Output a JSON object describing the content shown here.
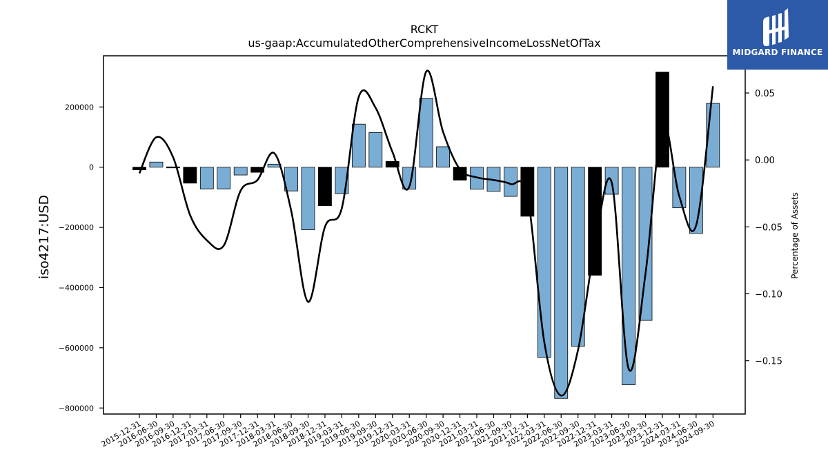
{
  "brand": {
    "name": "MIDGARD FINANCE",
    "color": "#2d5aa8"
  },
  "chart_data": {
    "type": "bar",
    "title": "RCKT",
    "subtitle": "us-gaap:AccumulatedOtherComprehensiveIncomeLossNetOfTax",
    "ylabel": "iso4217:USD",
    "ylabel_right": "Percentage of Assets",
    "ylim": [
      -820000,
      370000
    ],
    "ylim_right": [
      -0.1898,
      0.0778
    ],
    "yticks": [
      -800000,
      -600000,
      -400000,
      -200000,
      0,
      200000
    ],
    "yticks_right": [
      -0.15,
      -0.1,
      -0.05,
      0.0,
      0.05
    ],
    "yticks_right_labels": [
      "−0.15",
      "−0.10",
      "−0.05",
      "0.00",
      "0.05"
    ],
    "grid": false,
    "colors": {
      "increase": "#7aadd4",
      "decrease": "#000000",
      "line": "#000000"
    },
    "categories": [
      "2015-12-31",
      "2016-06-30",
      "2016-09-30",
      "2016-12-31",
      "2017-03-31",
      "2017-06-30",
      "2017-09-30",
      "2017-12-31",
      "2018-03-31",
      "2018-06-30",
      "2018-09-30",
      "2018-12-31",
      "2019-03-31",
      "2019-06-30",
      "2019-09-30",
      "2019-12-31",
      "2020-03-31",
      "2020-06-30",
      "2020-09-30",
      "2020-12-31",
      "2021-03-31",
      "2021-06-30",
      "2021-09-30",
      "2021-12-31",
      "2022-03-31",
      "2022-06-30",
      "2022-09-30",
      "2022-12-31",
      "2023-03-31",
      "2023-06-30",
      "2023-09-30",
      "2023-12-31",
      "2024-03-31",
      "2024-06-30",
      "2024-09-30"
    ],
    "series": [
      {
        "kind": "bar",
        "values": [
          -9000,
          17000,
          1000,
          -53000,
          -72000,
          -72000,
          -26000,
          -17000,
          10000,
          -79000,
          -208000,
          -128000,
          -88000,
          143000,
          115000,
          19000,
          -73000,
          229000,
          68000,
          -43000,
          -73000,
          -80000,
          -97000,
          -163000,
          -632000,
          -768000,
          -595000,
          -359000,
          -90000,
          -723000,
          -509000,
          316000,
          -135000,
          -220000,
          212000
        ],
        "color_code": [
          "decrease",
          "increase",
          "decrease",
          "decrease",
          "increase",
          "increase",
          "increase",
          "decrease",
          "increase",
          "increase",
          "increase",
          "decrease",
          "increase",
          "increase",
          "increase",
          "decrease",
          "increase",
          "increase",
          "increase",
          "decrease",
          "increase",
          "increase",
          "increase",
          "decrease",
          "increase",
          "increase",
          "increase",
          "decrease",
          "increase",
          "increase",
          "increase",
          "decrease",
          "increase",
          "increase",
          "increase"
        ]
      },
      {
        "kind": "line",
        "axis": "right",
        "values": [
          -0.01,
          0.017,
          0.002,
          -0.041,
          -0.06,
          -0.064,
          -0.023,
          -0.015,
          0.005,
          -0.038,
          -0.106,
          -0.05,
          -0.036,
          0.047,
          0.039,
          0.006,
          -0.02,
          0.066,
          0.021,
          -0.007,
          -0.013,
          -0.015,
          -0.018,
          -0.027,
          -0.136,
          -0.176,
          -0.142,
          -0.064,
          -0.017,
          -0.156,
          -0.085,
          0.027,
          -0.027,
          -0.049,
          0.055
        ]
      }
    ]
  }
}
